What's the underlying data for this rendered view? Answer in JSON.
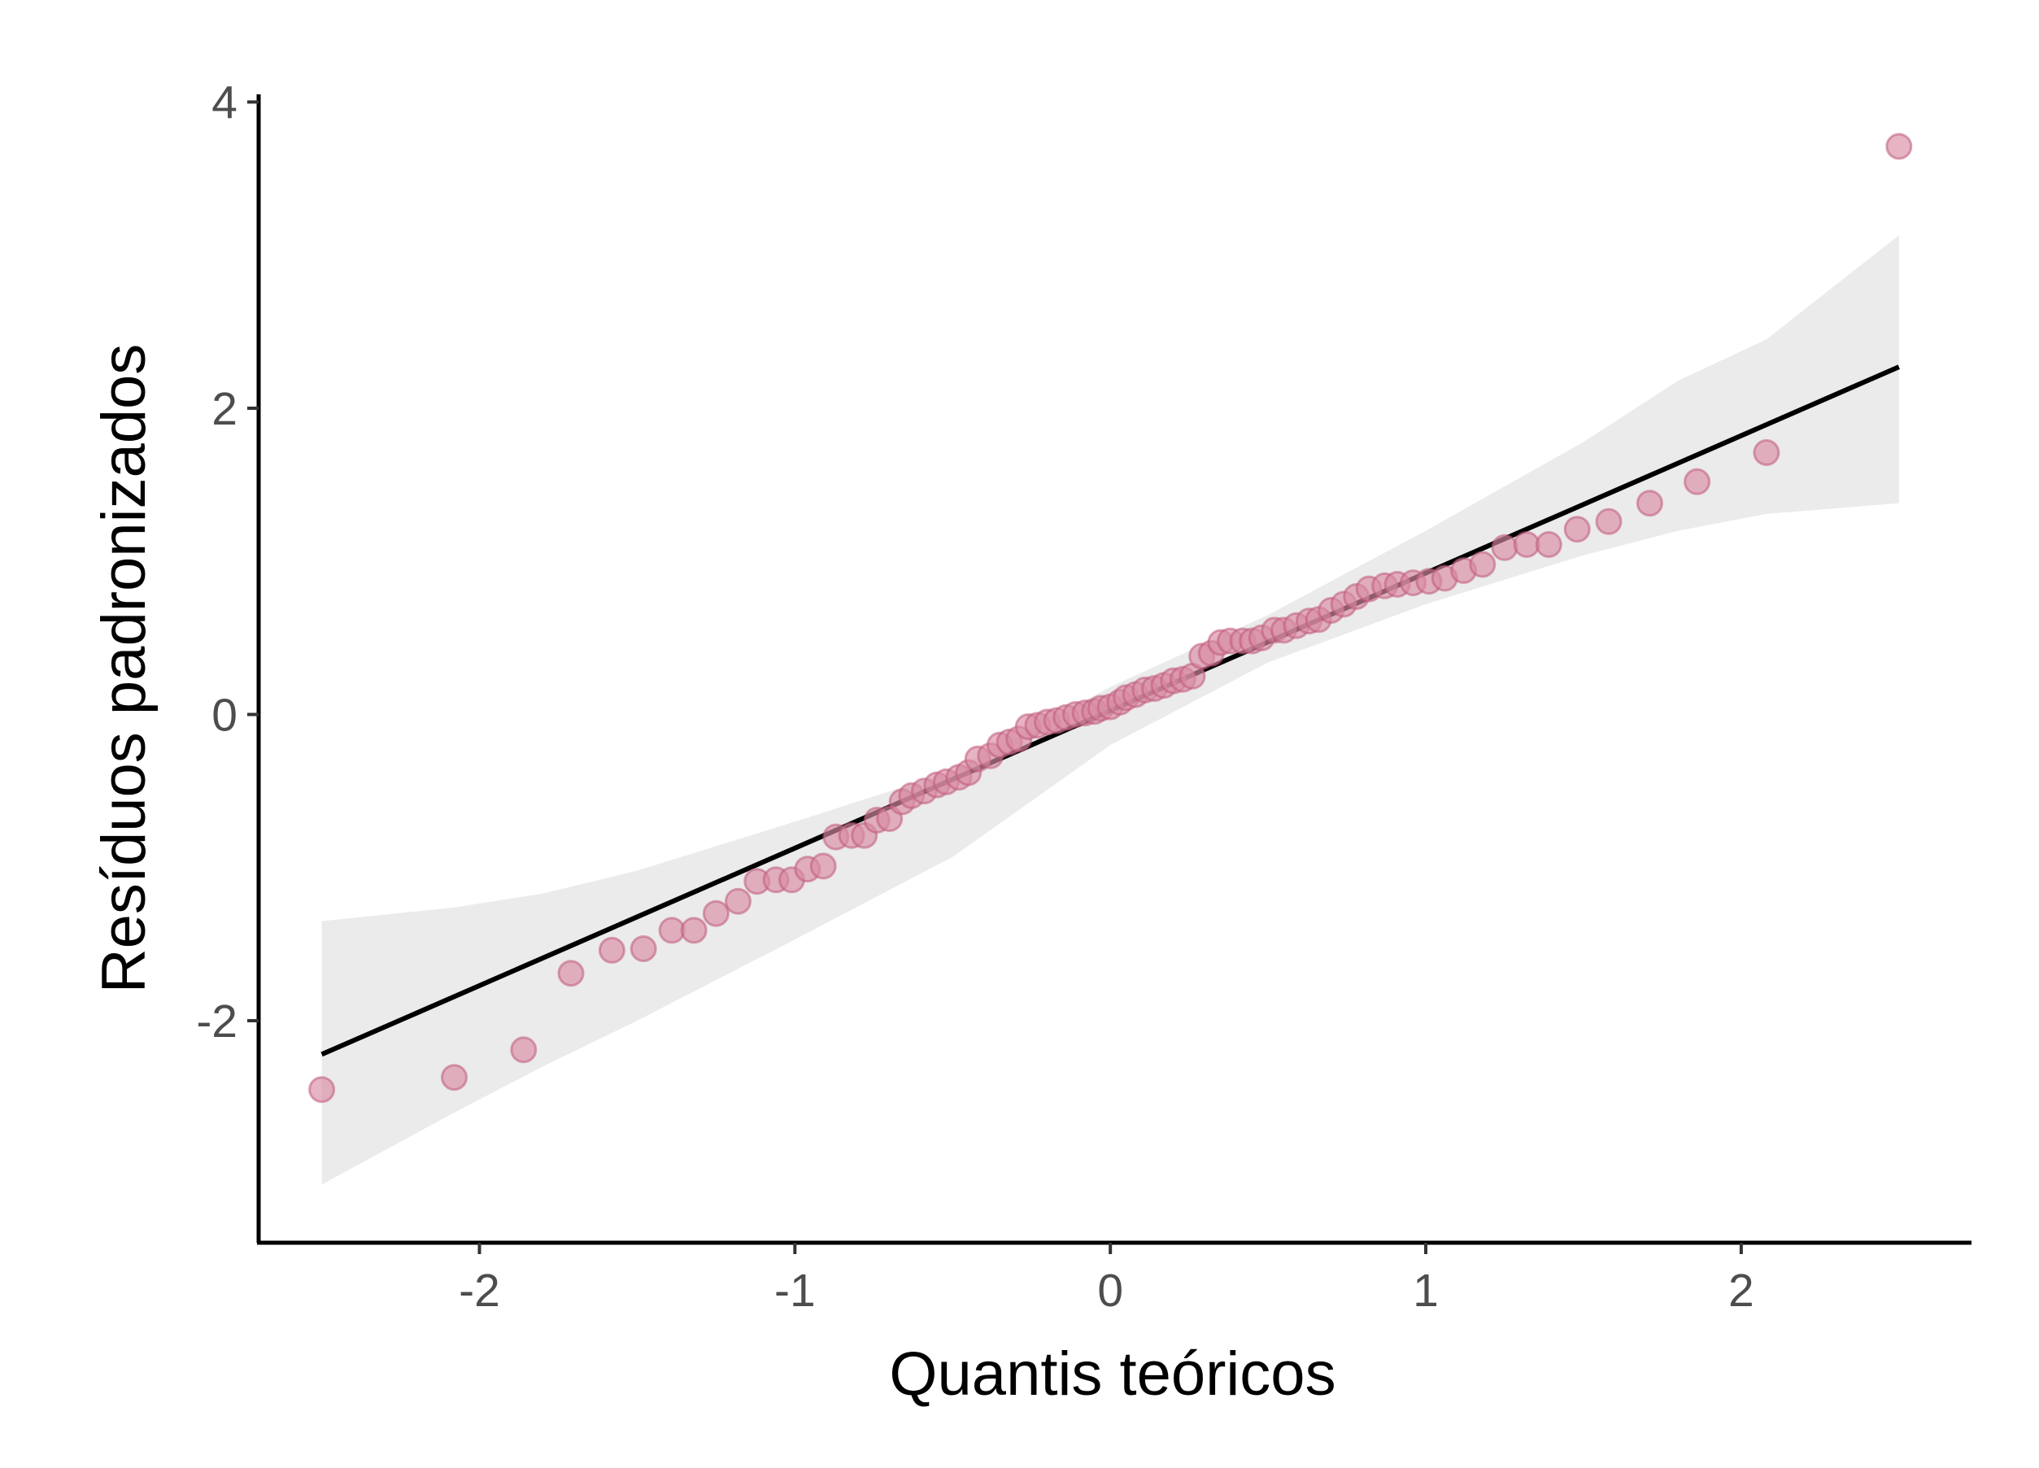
{
  "chart_data": {
    "type": "scatter",
    "title": "",
    "xlabel": "Quantis teóricos",
    "ylabel": "Resíduos padronizados",
    "xlim": [
      -2.7,
      2.73
    ],
    "ylim": [
      -3.45,
      4.05
    ],
    "x_ticks": [
      -2,
      -1,
      0,
      1,
      2
    ],
    "y_ticks": [
      -2,
      0,
      2,
      4
    ],
    "x_tick_labels": [
      "-2",
      "-1",
      "0",
      "1",
      "2"
    ],
    "y_tick_labels": [
      "-2",
      "0",
      "2",
      "4"
    ],
    "grid": false,
    "legend": "none",
    "colors": {
      "points_fill": "#d98ca3",
      "points_stroke": "#c05a7a",
      "line": "#000000",
      "band": "#ebebeb",
      "axis": "#000000"
    },
    "reference_line": {
      "x": [
        -2.5,
        2.5
      ],
      "y": [
        -2.22,
        2.27
      ]
    },
    "confidence_band": {
      "x": [
        -2.5,
        -2.08,
        -1.8,
        -1.5,
        -1.0,
        -0.5,
        0.0,
        0.5,
        1.0,
        1.5,
        1.8,
        2.08,
        2.5
      ],
      "lower": [
        -3.07,
        -2.6,
        -2.3,
        -2.0,
        -1.47,
        -0.93,
        -0.2,
        0.34,
        0.72,
        1.04,
        1.2,
        1.31,
        1.38
      ],
      "upper": [
        -1.35,
        -1.26,
        -1.17,
        -1.02,
        -0.7,
        -0.37,
        0.18,
        0.65,
        1.2,
        1.78,
        2.18,
        2.45,
        3.13
      ]
    },
    "series": [
      {
        "x": [
          -2.5,
          -2.08,
          -1.86,
          -1.71,
          -1.58,
          -1.48,
          -1.39,
          -1.32,
          -1.25,
          -1.18,
          -1.12,
          -1.06,
          -1.01,
          -0.96,
          -0.91,
          -0.87,
          -0.82,
          -0.78,
          -0.74,
          -0.7,
          -0.66,
          -0.63,
          -0.59,
          -0.55,
          -0.52,
          -0.48,
          -0.45,
          -0.42,
          -0.38,
          -0.35,
          -0.32,
          -0.29,
          -0.26,
          -0.23,
          -0.2,
          -0.17,
          -0.14,
          -0.11,
          -0.08,
          -0.05,
          -0.03,
          0.0,
          0.03,
          0.05,
          0.08,
          0.11,
          0.14,
          0.17,
          0.2,
          0.23,
          0.26,
          0.29,
          0.32,
          0.35,
          0.38,
          0.42,
          0.45,
          0.48,
          0.52,
          0.55,
          0.59,
          0.63,
          0.66,
          0.7,
          0.74,
          0.78,
          0.82,
          0.87,
          0.91,
          0.96,
          1.01,
          1.06,
          1.12,
          1.18,
          1.25,
          1.32,
          1.39,
          1.48,
          1.58,
          1.71,
          1.86,
          2.08,
          2.5
        ],
        "y": [
          -2.45,
          -2.37,
          -2.19,
          -1.69,
          -1.54,
          -1.53,
          -1.41,
          -1.41,
          -1.3,
          -1.22,
          -1.09,
          -1.08,
          -1.08,
          -1.01,
          -0.99,
          -0.8,
          -0.79,
          -0.79,
          -0.69,
          -0.68,
          -0.57,
          -0.53,
          -0.5,
          -0.46,
          -0.44,
          -0.41,
          -0.38,
          -0.29,
          -0.27,
          -0.2,
          -0.18,
          -0.16,
          -0.08,
          -0.07,
          -0.05,
          -0.04,
          -0.02,
          0.0,
          0.01,
          0.02,
          0.04,
          0.05,
          0.08,
          0.11,
          0.13,
          0.16,
          0.17,
          0.19,
          0.22,
          0.23,
          0.25,
          0.38,
          0.4,
          0.47,
          0.48,
          0.48,
          0.48,
          0.5,
          0.55,
          0.55,
          0.58,
          0.61,
          0.62,
          0.68,
          0.72,
          0.77,
          0.82,
          0.84,
          0.85,
          0.86,
          0.87,
          0.89,
          0.94,
          0.98,
          1.09,
          1.11,
          1.11,
          1.21,
          1.26,
          1.38,
          1.52,
          1.71,
          3.71
        ]
      }
    ]
  }
}
